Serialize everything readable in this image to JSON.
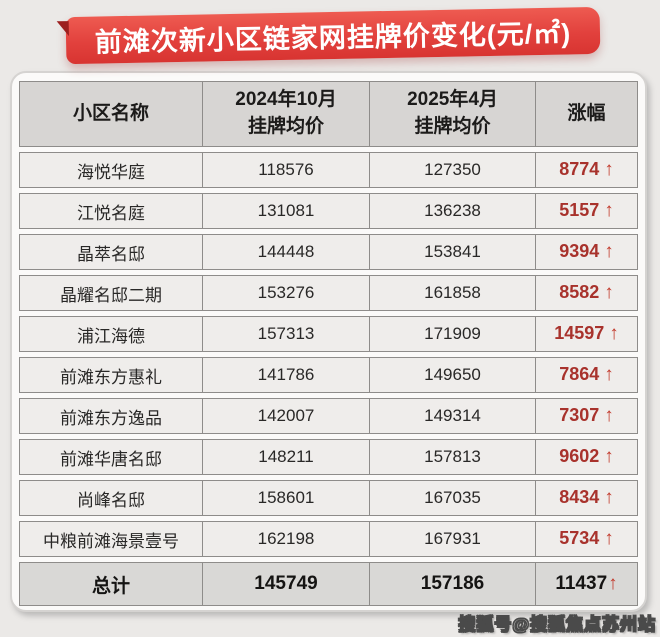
{
  "banner": {
    "title": "前滩次新小区链家网挂牌价变化(元/㎡)"
  },
  "table": {
    "headers": {
      "col1": "小区名称",
      "col2_line1": "2024年10月",
      "col2_line2": "挂牌均价",
      "col3_line1": "2025年4月",
      "col3_line2": "挂牌均价",
      "col4": "涨幅"
    },
    "up_arrow": "↑"
  },
  "watermark": {
    "text": "搜狐号@搜狐焦点苏州站"
  },
  "colors": {
    "banner_red": "#e2413d",
    "banner_fold_dark_red": "#9c1f1e",
    "header_bg": "#d7d5d3",
    "row_bg": "#efedeb",
    "total_row_bg": "#d9d8d6",
    "cell_border": "#8e8c8a",
    "change_number_red": "#a8322c",
    "arrow_red": "#c2392b",
    "card_bg": "#fbfaf9",
    "page_bg": "#ebe9e7"
  },
  "chart_data": {
    "type": "table",
    "title": "前滩次新小区链家网挂牌价变化(元/㎡)",
    "unit": "元/㎡",
    "columns": [
      "小区名称",
      "2024年10月挂牌均价",
      "2025年4月挂牌均价",
      "涨幅"
    ],
    "rows": [
      {
        "name": "海悦华庭",
        "oct2024": 118576,
        "apr2025": 127350,
        "change": 8774
      },
      {
        "name": "江悦名庭",
        "oct2024": 131081,
        "apr2025": 136238,
        "change": 5157
      },
      {
        "name": "晶萃名邸",
        "oct2024": 144448,
        "apr2025": 153841,
        "change": 9394
      },
      {
        "name": "晶耀名邸二期",
        "oct2024": 153276,
        "apr2025": 161858,
        "change": 8582
      },
      {
        "name": "浦江海德",
        "oct2024": 157313,
        "apr2025": 171909,
        "change": 14597
      },
      {
        "name": "前滩东方惠礼",
        "oct2024": 141786,
        "apr2025": 149650,
        "change": 7864
      },
      {
        "name": "前滩东方逸品",
        "oct2024": 142007,
        "apr2025": 149314,
        "change": 7307
      },
      {
        "name": "前滩华唐名邸",
        "oct2024": 148211,
        "apr2025": 157813,
        "change": 9602
      },
      {
        "name": "尚峰名邸",
        "oct2024": 158601,
        "apr2025": 167035,
        "change": 8434
      },
      {
        "name": "中粮前滩海景壹号",
        "oct2024": 162198,
        "apr2025": 167931,
        "change": 5734
      }
    ],
    "total": {
      "name": "总计",
      "oct2024": 145749,
      "apr2025": 157186,
      "change": 11437
    },
    "change_direction": "up"
  }
}
